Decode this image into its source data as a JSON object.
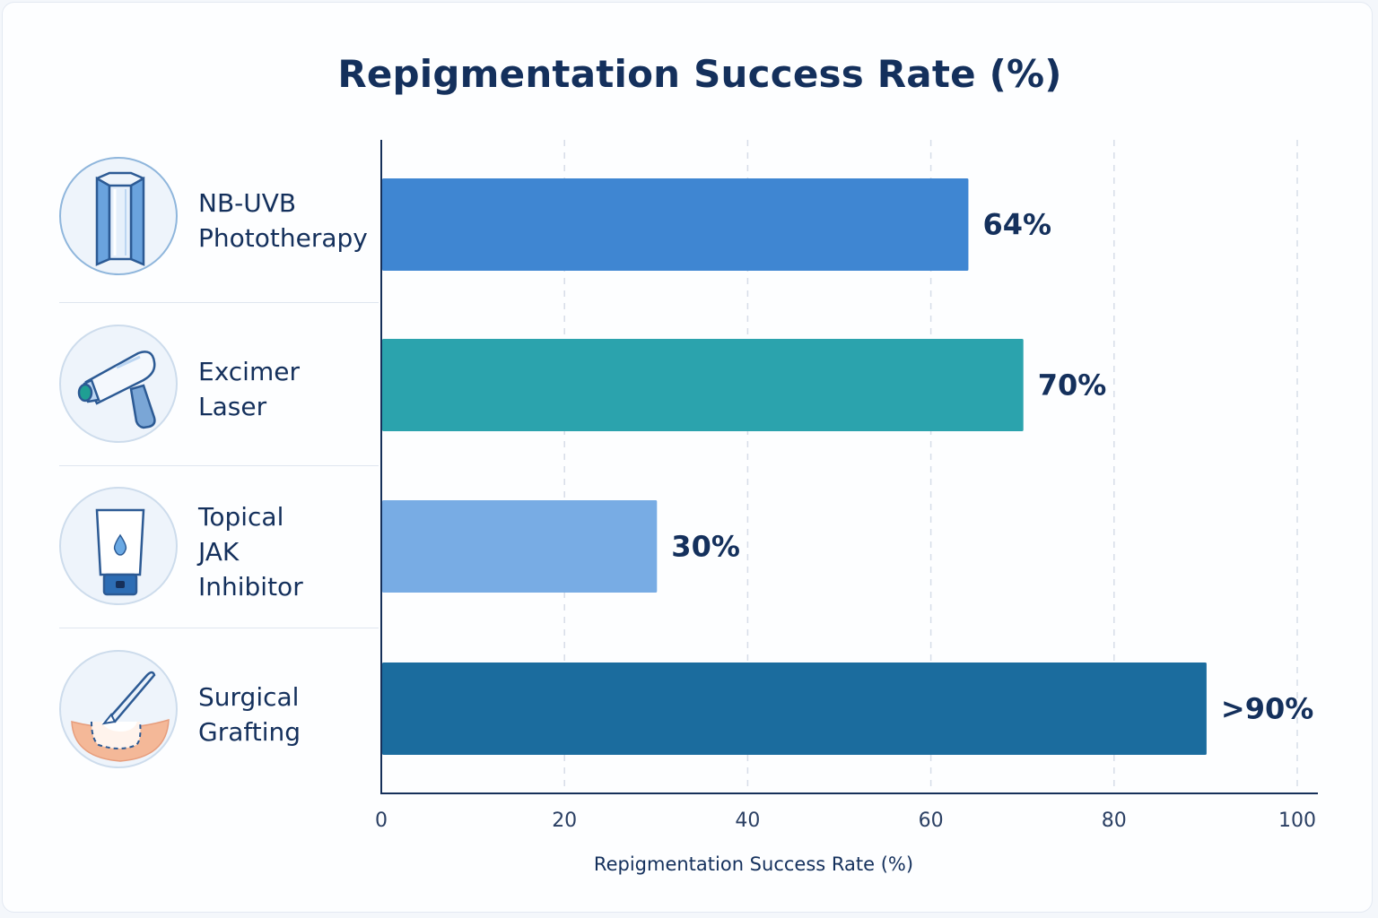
{
  "chart_data": {
    "type": "bar",
    "orientation": "horizontal",
    "title": "Repigmentation Success Rate (%)",
    "xlabel": "Repigmentation Success Rate (%)",
    "ylabel": "",
    "xlim": [
      0,
      100
    ],
    "ticks": [
      "0",
      "20",
      "40",
      "60",
      "80",
      "100"
    ],
    "categories": [
      "NB-UVB\nPhototherapy",
      "Excimer\nLaser",
      "Topical\nJAK\nInhibitor",
      "Surgical\nGrafting"
    ],
    "values": [
      64,
      70,
      30,
      90
    ],
    "value_labels": [
      "64%",
      "70%",
      "30%",
      ">90%"
    ],
    "colors": [
      "#3f86d2",
      "#2ba3ad",
      "#78ace4",
      "#1b6c9e"
    ],
    "icons": [
      "light-panel-icon",
      "laser-handpiece-icon",
      "cream-tube-icon",
      "scalpel-graft-icon"
    ],
    "grid": "vertical dashed"
  }
}
